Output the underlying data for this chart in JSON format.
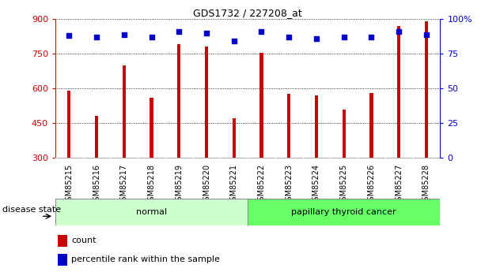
{
  "title": "GDS1732 / 227208_at",
  "categories": [
    "GSM85215",
    "GSM85216",
    "GSM85217",
    "GSM85218",
    "GSM85219",
    "GSM85220",
    "GSM85221",
    "GSM85222",
    "GSM85223",
    "GSM85224",
    "GSM85225",
    "GSM85226",
    "GSM85227",
    "GSM85228"
  ],
  "counts": [
    590,
    480,
    700,
    560,
    790,
    780,
    470,
    755,
    575,
    570,
    510,
    580,
    870,
    890
  ],
  "percentiles": [
    88,
    87,
    89,
    87,
    91,
    90,
    84,
    91,
    87,
    86,
    87,
    87,
    91,
    89
  ],
  "ylim_left": [
    300,
    900
  ],
  "ylim_right": [
    0,
    100
  ],
  "yticks_left": [
    300,
    450,
    600,
    750,
    900
  ],
  "yticks_right": [
    0,
    25,
    50,
    75,
    100
  ],
  "ytick_labels_right": [
    "0",
    "25",
    "50",
    "75",
    "100%"
  ],
  "bar_color": "#cc0000",
  "dot_color": "#0000cc",
  "normal_label": "normal",
  "cancer_label": "papillary thyroid cancer",
  "disease_state_label": "disease state",
  "legend_count": "count",
  "legend_percentile": "percentile rank within the sample",
  "normal_color": "#ccffcc",
  "cancer_color": "#66ff66",
  "tick_area_color": "#c8c8c8",
  "bar_width": 0.12
}
